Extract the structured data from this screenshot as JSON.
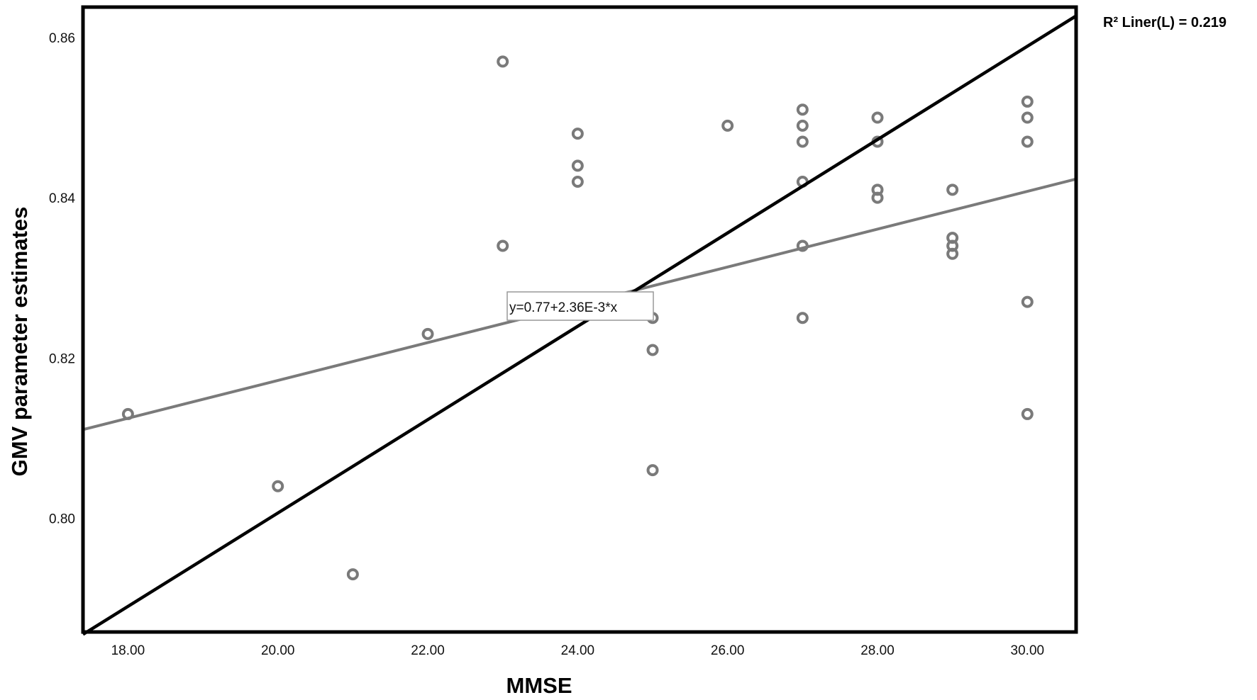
{
  "chart_data": {
    "type": "scatter",
    "title": "",
    "xlabel": "MMSE",
    "ylabel": "GMV parameter estimates",
    "xlim": [
      17.4,
      30.65
    ],
    "ylim": [
      0.7858,
      0.8638
    ],
    "grid": false,
    "x_ticks": [
      18,
      20,
      22,
      24,
      26,
      28,
      30
    ],
    "x_tick_labels": [
      "18.00",
      "20.00",
      "22.00",
      "24.00",
      "26.00",
      "28.00",
      "30.00"
    ],
    "y_ticks": [
      0.8,
      0.82,
      0.84,
      0.86
    ],
    "y_tick_labels": [
      "0.80",
      "0.82",
      "0.84",
      "0.86"
    ],
    "marker": "hollow-circle",
    "marker_color": "#7a7a7a",
    "series": [
      {
        "name": "observations",
        "x": [
          18,
          20,
          21,
          22,
          23,
          23,
          24,
          24,
          24,
          25,
          25,
          25,
          26,
          27,
          27,
          27,
          27,
          27,
          27,
          28,
          28,
          28,
          28,
          29,
          29,
          29,
          29,
          30,
          30,
          30,
          30,
          30
        ],
        "y": [
          0.813,
          0.804,
          0.793,
          0.823,
          0.857,
          0.834,
          0.848,
          0.844,
          0.842,
          0.825,
          0.821,
          0.806,
          0.849,
          0.851,
          0.849,
          0.847,
          0.842,
          0.834,
          0.825,
          0.85,
          0.847,
          0.841,
          0.84,
          0.841,
          0.835,
          0.834,
          0.833,
          0.852,
          0.85,
          0.847,
          0.827,
          0.813
        ]
      }
    ],
    "fit_lines": [
      {
        "name": "linear-fit",
        "color": "#7a7a7a",
        "intercept": 0.77,
        "slope": 0.00236,
        "x_range": [
          17.4,
          30.65
        ]
      },
      {
        "name": "reference-line",
        "color": "#000000",
        "points": [
          [
            17.4,
            0.7855
          ],
          [
            30.65,
            0.8627
          ]
        ]
      }
    ],
    "annotations": {
      "equation": "y=0.77+2.36E-3*x",
      "r_squared": "R² Liner(L) = 0.219"
    },
    "legend": "none"
  }
}
